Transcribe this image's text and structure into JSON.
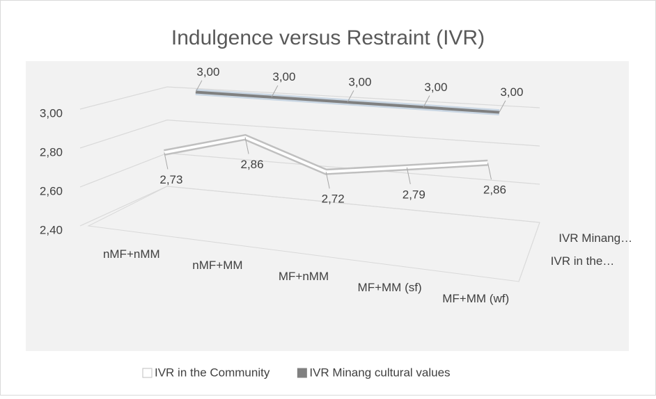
{
  "chart_data": {
    "type": "line3d",
    "title": "Indulgence versus Restraint (IVR)",
    "categories": [
      "nMF+nMM",
      "nMF+MM",
      "MF+nMM",
      "MF+MM (sf)",
      "MF+MM (wf)"
    ],
    "depth_labels": [
      "IVR in the…",
      "IVR Minang…"
    ],
    "series": [
      {
        "name": "IVR in the Community",
        "color": "#ffffff",
        "edge": "#bfbfbf",
        "values": [
          2.73,
          2.86,
          2.72,
          2.79,
          2.86
        ],
        "value_labels": [
          "2,73",
          "2,86",
          "2,72",
          "2,79",
          "2,86"
        ]
      },
      {
        "name": "IVR Minang cultural values",
        "color": "#808080",
        "edge": "#c9d6e3",
        "values": [
          3,
          3,
          3,
          3,
          3
        ],
        "value_labels": [
          "3,00",
          "3,00",
          "3,00",
          "3,00",
          "3,00"
        ]
      }
    ],
    "ylim": [
      2.4,
      3.0
    ],
    "yticks": [
      {
        "value": 2.4,
        "label": "2,40"
      },
      {
        "value": 2.6,
        "label": "2,60"
      },
      {
        "value": 2.8,
        "label": "2,80"
      },
      {
        "value": 3.0,
        "label": "3,00"
      }
    ],
    "grid": true,
    "legend": "bottom"
  }
}
